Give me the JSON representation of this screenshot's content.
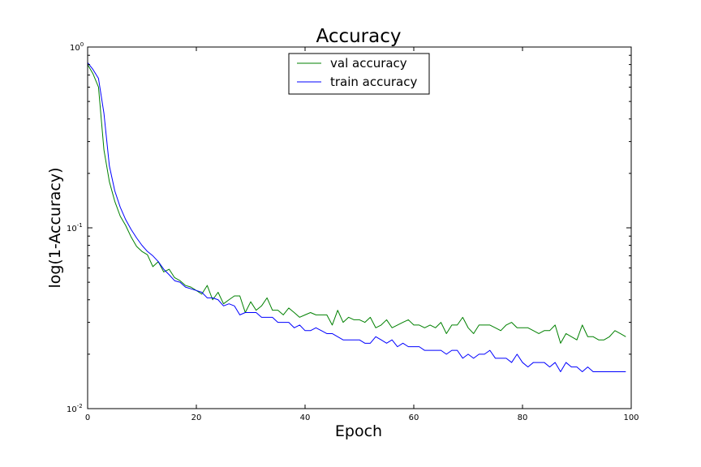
{
  "chart_data": {
    "type": "line",
    "title": "Accuracy",
    "xlabel": "Epoch",
    "ylabel": "log(1-Accuracy)",
    "xlim": [
      0,
      100
    ],
    "ylim": [
      0.01,
      1
    ],
    "yscale": "log",
    "grid": false,
    "legend_position": "top-center",
    "x_ticks": [
      0,
      20,
      40,
      60,
      80,
      100
    ],
    "y_ticks": [
      {
        "value": 1,
        "base": "10",
        "exp": "0"
      },
      {
        "value": 0.1,
        "base": "10",
        "exp": "-1"
      },
      {
        "value": 0.01,
        "base": "10",
        "exp": "-2"
      }
    ],
    "series": [
      {
        "name": "val accuracy",
        "color": "#008000",
        "x": [
          0,
          1,
          2,
          3,
          4,
          5,
          6,
          7,
          8,
          9,
          10,
          11,
          12,
          13,
          14,
          15,
          16,
          17,
          18,
          19,
          20,
          21,
          22,
          23,
          24,
          25,
          26,
          27,
          28,
          29,
          30,
          31,
          32,
          33,
          34,
          35,
          36,
          37,
          38,
          39,
          40,
          41,
          42,
          43,
          44,
          45,
          46,
          47,
          48,
          49,
          50,
          51,
          52,
          53,
          54,
          55,
          56,
          57,
          58,
          59,
          60,
          61,
          62,
          63,
          64,
          65,
          66,
          67,
          68,
          69,
          70,
          71,
          72,
          73,
          74,
          75,
          76,
          77,
          78,
          79,
          80,
          81,
          82,
          83,
          84,
          85,
          86,
          87,
          88,
          89,
          90,
          91,
          92,
          93,
          94,
          95,
          96,
          97,
          98,
          99
        ],
        "values": [
          0.8,
          0.71,
          0.6,
          0.27,
          0.18,
          0.14,
          0.116,
          0.103,
          0.089,
          0.079,
          0.074,
          0.071,
          0.061,
          0.065,
          0.057,
          0.059,
          0.053,
          0.051,
          0.048,
          0.047,
          0.045,
          0.043,
          0.048,
          0.04,
          0.044,
          0.038,
          0.04,
          0.042,
          0.042,
          0.034,
          0.039,
          0.035,
          0.037,
          0.041,
          0.035,
          0.035,
          0.033,
          0.036,
          0.034,
          0.032,
          0.033,
          0.034,
          0.033,
          0.033,
          0.033,
          0.029,
          0.035,
          0.03,
          0.032,
          0.031,
          0.031,
          0.03,
          0.032,
          0.028,
          0.029,
          0.031,
          0.028,
          0.029,
          0.03,
          0.031,
          0.029,
          0.029,
          0.028,
          0.029,
          0.028,
          0.03,
          0.026,
          0.029,
          0.029,
          0.032,
          0.028,
          0.026,
          0.029,
          0.029,
          0.029,
          0.028,
          0.027,
          0.029,
          0.03,
          0.028,
          0.028,
          0.028,
          0.027,
          0.026,
          0.027,
          0.027,
          0.029,
          0.023,
          0.026,
          0.025,
          0.024,
          0.029,
          0.025,
          0.025,
          0.024,
          0.024,
          0.025,
          0.027,
          0.026,
          0.025
        ]
      },
      {
        "name": "train accuracy",
        "color": "#0000ff",
        "x": [
          0,
          1,
          2,
          3,
          4,
          5,
          6,
          7,
          8,
          9,
          10,
          11,
          12,
          13,
          14,
          15,
          16,
          17,
          18,
          19,
          20,
          21,
          22,
          23,
          24,
          25,
          26,
          27,
          28,
          29,
          30,
          31,
          32,
          33,
          34,
          35,
          36,
          37,
          38,
          39,
          40,
          41,
          42,
          43,
          44,
          45,
          46,
          47,
          48,
          49,
          50,
          51,
          52,
          53,
          54,
          55,
          56,
          57,
          58,
          59,
          60,
          61,
          62,
          63,
          64,
          65,
          66,
          67,
          68,
          69,
          70,
          71,
          72,
          73,
          74,
          75,
          76,
          77,
          78,
          79,
          80,
          81,
          82,
          83,
          84,
          85,
          86,
          87,
          88,
          89,
          90,
          91,
          92,
          93,
          94,
          95,
          96,
          97,
          98,
          99
        ],
        "values": [
          0.82,
          0.75,
          0.67,
          0.43,
          0.22,
          0.16,
          0.13,
          0.111,
          0.098,
          0.088,
          0.08,
          0.074,
          0.07,
          0.065,
          0.059,
          0.055,
          0.051,
          0.05,
          0.047,
          0.046,
          0.045,
          0.044,
          0.041,
          0.041,
          0.04,
          0.037,
          0.038,
          0.037,
          0.033,
          0.034,
          0.034,
          0.034,
          0.032,
          0.032,
          0.032,
          0.03,
          0.03,
          0.03,
          0.028,
          0.029,
          0.027,
          0.027,
          0.028,
          0.027,
          0.026,
          0.026,
          0.025,
          0.024,
          0.024,
          0.024,
          0.024,
          0.023,
          0.023,
          0.025,
          0.024,
          0.023,
          0.024,
          0.022,
          0.023,
          0.022,
          0.022,
          0.022,
          0.021,
          0.021,
          0.021,
          0.021,
          0.02,
          0.021,
          0.021,
          0.019,
          0.02,
          0.019,
          0.02,
          0.02,
          0.021,
          0.019,
          0.019,
          0.019,
          0.018,
          0.02,
          0.018,
          0.017,
          0.018,
          0.018,
          0.018,
          0.017,
          0.018,
          0.016,
          0.018,
          0.017,
          0.017,
          0.016,
          0.017,
          0.016,
          0.016,
          0.016,
          0.016,
          0.016,
          0.016,
          0.016
        ]
      }
    ]
  }
}
